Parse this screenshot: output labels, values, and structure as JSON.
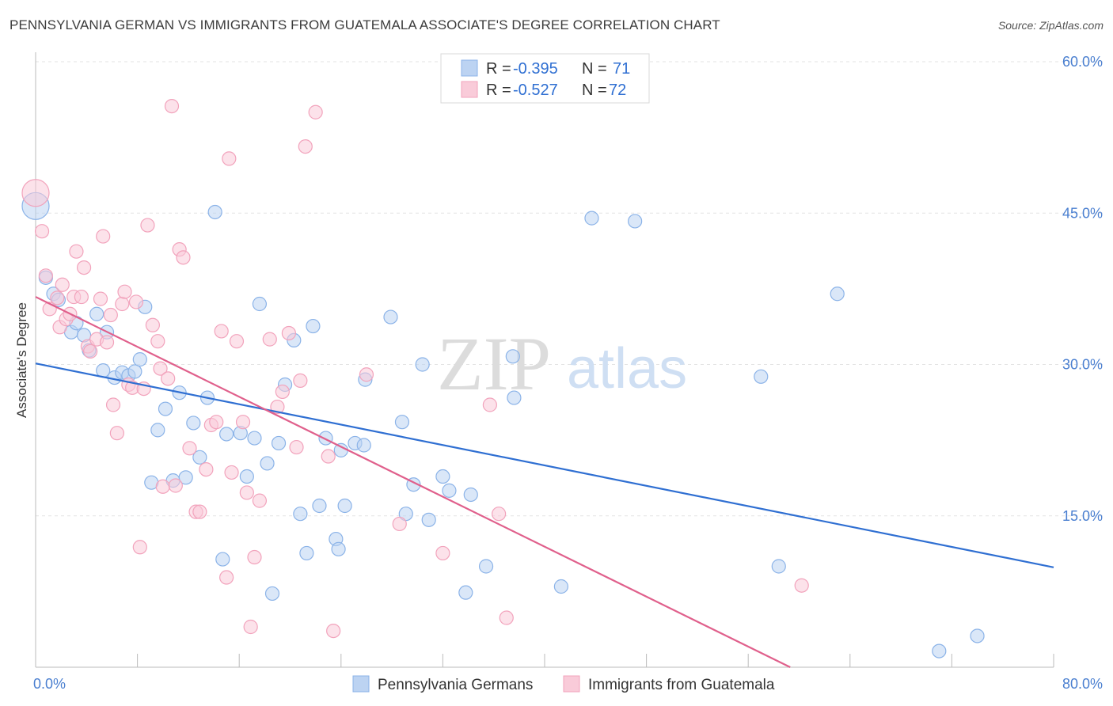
{
  "chart_data": {
    "type": "scatter",
    "title": "PENNSYLVANIA GERMAN VS IMMIGRANTS FROM GUATEMALA ASSOCIATE'S DEGREE CORRELATION CHART",
    "source": "Source: ZipAtlas.com",
    "ylabel": "Associate's Degree",
    "xlabel": "",
    "xlim": [
      0,
      80
    ],
    "ylim": [
      0,
      60
    ],
    "x_tick_labels": [
      "0.0%",
      "80.0%"
    ],
    "y_ticks": [
      15,
      30,
      45,
      60
    ],
    "y_tick_labels": [
      "15.0%",
      "30.0%",
      "45.0%",
      "60.0%"
    ],
    "watermark": {
      "zip": "ZIP",
      "atlas": "atlas"
    },
    "stats": [
      {
        "r_label": "R =",
        "r_value": "-0.395",
        "n_label": "N =",
        "n_value": "71"
      },
      {
        "r_label": "R =",
        "r_value": "-0.527",
        "n_label": "N =",
        "n_value": "72"
      }
    ],
    "series": [
      {
        "name": "Pennsylvania Germans",
        "color": "#8bb3e8",
        "fill": "#bcd3f2",
        "line_color": "#2f6fd2",
        "trend": {
          "x0": 0,
          "y0": 30.1,
          "x1": 80,
          "y1": 9.9
        },
        "points": [
          [
            0,
            45.7
          ],
          [
            0.8,
            38.6
          ],
          [
            1.4,
            37.0
          ],
          [
            1.8,
            36.4
          ],
          [
            2.8,
            33.2
          ],
          [
            3.2,
            34.1
          ],
          [
            3.8,
            32.9
          ],
          [
            4.2,
            31.4
          ],
          [
            4.8,
            35.0
          ],
          [
            5.3,
            29.4
          ],
          [
            5.6,
            33.2
          ],
          [
            6.2,
            28.7
          ],
          [
            6.8,
            29.2
          ],
          [
            7.3,
            28.9
          ],
          [
            7.8,
            29.3
          ],
          [
            8.2,
            30.5
          ],
          [
            8.6,
            35.7
          ],
          [
            9.1,
            18.3
          ],
          [
            9.6,
            23.5
          ],
          [
            10.2,
            25.6
          ],
          [
            10.8,
            18.5
          ],
          [
            11.3,
            27.2
          ],
          [
            11.8,
            18.8
          ],
          [
            12.4,
            24.2
          ],
          [
            12.9,
            20.8
          ],
          [
            13.5,
            26.7
          ],
          [
            14.1,
            45.1
          ],
          [
            14.7,
            10.7
          ],
          [
            15.0,
            23.1
          ],
          [
            16.1,
            23.2
          ],
          [
            16.6,
            18.9
          ],
          [
            17.2,
            22.7
          ],
          [
            17.6,
            36.0
          ],
          [
            18.2,
            20.2
          ],
          [
            18.6,
            7.3
          ],
          [
            19.1,
            22.2
          ],
          [
            19.6,
            28.0
          ],
          [
            20.3,
            32.4
          ],
          [
            20.8,
            15.2
          ],
          [
            21.3,
            11.3
          ],
          [
            21.8,
            33.8
          ],
          [
            22.3,
            16.0
          ],
          [
            22.8,
            22.7
          ],
          [
            23.6,
            12.7
          ],
          [
            23.8,
            11.7
          ],
          [
            24.3,
            16.0
          ],
          [
            25.1,
            22.2
          ],
          [
            25.8,
            22.0
          ],
          [
            25.9,
            28.5
          ],
          [
            27.9,
            34.7
          ],
          [
            28.8,
            24.3
          ],
          [
            29.1,
            15.2
          ],
          [
            29.7,
            18.1
          ],
          [
            30.4,
            30.0
          ],
          [
            30.9,
            14.6
          ],
          [
            32.0,
            18.9
          ],
          [
            32.5,
            17.5
          ],
          [
            33.8,
            7.4
          ],
          [
            34.2,
            17.1
          ],
          [
            35.4,
            10.0
          ],
          [
            37.5,
            30.8
          ],
          [
            37.6,
            26.7
          ],
          [
            41.3,
            8.0
          ],
          [
            43.7,
            44.5
          ],
          [
            47.1,
            44.2
          ],
          [
            57.0,
            28.8
          ],
          [
            58.4,
            10.0
          ],
          [
            63.0,
            37.0
          ],
          [
            71.0,
            1.6
          ],
          [
            74.0,
            3.1
          ],
          [
            24.0,
            21.5
          ]
        ]
      },
      {
        "name": "Immigrants from Guatemala",
        "color": "#f2a3bc",
        "fill": "#f9cbd9",
        "line_color": "#e0608c",
        "trend": {
          "x0": 0,
          "y0": 36.7,
          "x1": 59.3,
          "y1": 0
        },
        "points": [
          [
            0,
            47.0
          ],
          [
            0.5,
            43.2
          ],
          [
            0.8,
            38.8
          ],
          [
            1.1,
            35.5
          ],
          [
            1.7,
            36.6
          ],
          [
            1.9,
            33.7
          ],
          [
            2.1,
            37.9
          ],
          [
            2.4,
            34.5
          ],
          [
            2.7,
            35.0
          ],
          [
            3.0,
            36.7
          ],
          [
            3.2,
            41.2
          ],
          [
            3.6,
            36.7
          ],
          [
            3.8,
            39.6
          ],
          [
            4.1,
            31.8
          ],
          [
            4.3,
            31.3
          ],
          [
            4.8,
            32.5
          ],
          [
            5.1,
            36.5
          ],
          [
            5.3,
            42.7
          ],
          [
            5.6,
            32.2
          ],
          [
            5.9,
            34.9
          ],
          [
            6.1,
            26.0
          ],
          [
            6.4,
            23.2
          ],
          [
            6.8,
            36.0
          ],
          [
            7.0,
            37.2
          ],
          [
            7.3,
            28.0
          ],
          [
            7.6,
            27.7
          ],
          [
            7.9,
            36.2
          ],
          [
            8.2,
            11.9
          ],
          [
            8.5,
            27.6
          ],
          [
            8.8,
            43.8
          ],
          [
            9.2,
            33.9
          ],
          [
            9.6,
            32.3
          ],
          [
            9.8,
            29.6
          ],
          [
            10.0,
            17.9
          ],
          [
            10.4,
            28.6
          ],
          [
            10.7,
            55.6
          ],
          [
            11.0,
            18.0
          ],
          [
            11.3,
            41.4
          ],
          [
            11.6,
            40.6
          ],
          [
            12.1,
            21.7
          ],
          [
            12.6,
            15.4
          ],
          [
            12.9,
            15.4
          ],
          [
            13.4,
            19.6
          ],
          [
            13.8,
            24.0
          ],
          [
            14.2,
            24.3
          ],
          [
            14.6,
            33.3
          ],
          [
            15.0,
            8.9
          ],
          [
            15.2,
            50.4
          ],
          [
            15.4,
            19.3
          ],
          [
            15.8,
            32.3
          ],
          [
            16.3,
            24.3
          ],
          [
            16.6,
            17.3
          ],
          [
            16.9,
            4.0
          ],
          [
            17.2,
            10.9
          ],
          [
            17.6,
            16.5
          ],
          [
            18.4,
            32.5
          ],
          [
            19.0,
            25.8
          ],
          [
            19.4,
            27.3
          ],
          [
            19.9,
            33.1
          ],
          [
            20.5,
            21.8
          ],
          [
            20.8,
            28.4
          ],
          [
            21.2,
            51.6
          ],
          [
            22.0,
            55.0
          ],
          [
            23.0,
            20.9
          ],
          [
            23.4,
            3.6
          ],
          [
            26.0,
            29.0
          ],
          [
            28.6,
            14.2
          ],
          [
            32.0,
            11.3
          ],
          [
            36.4,
            15.2
          ],
          [
            37.0,
            4.9
          ],
          [
            60.2,
            8.1
          ],
          [
            35.7,
            26.0
          ]
        ]
      }
    ]
  }
}
